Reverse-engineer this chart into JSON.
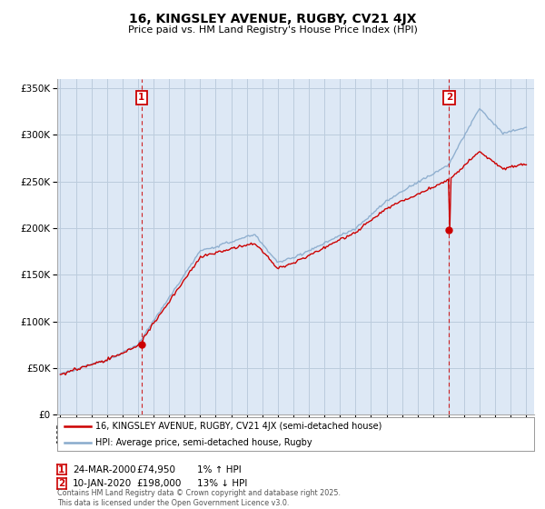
{
  "title": "16, KINGSLEY AVENUE, RUGBY, CV21 4JX",
  "subtitle": "Price paid vs. HM Land Registry's House Price Index (HPI)",
  "legend_line1": "16, KINGSLEY AVENUE, RUGBY, CV21 4JX (semi-detached house)",
  "legend_line2": "HPI: Average price, semi-detached house, Rugby",
  "footnote": "Contains HM Land Registry data © Crown copyright and database right 2025.\nThis data is licensed under the Open Government Licence v3.0.",
  "marker1_date": "24-MAR-2000",
  "marker1_price": "£74,950",
  "marker1_hpi": "1% ↑ HPI",
  "marker2_date": "10-JAN-2020",
  "marker2_price": "£198,000",
  "marker2_hpi": "13% ↓ HPI",
  "sale1_year": 2000.23,
  "sale1_price": 74950,
  "sale2_year": 2020.03,
  "sale2_price": 198000,
  "red_color": "#cc0000",
  "blue_color": "#88aacc",
  "chart_bg": "#dde8f5",
  "background": "#ffffff",
  "grid_color": "#bbccdd",
  "ylim_min": 0,
  "ylim_max": 360000,
  "xlim_min": 1994.8,
  "xlim_max": 2025.5
}
